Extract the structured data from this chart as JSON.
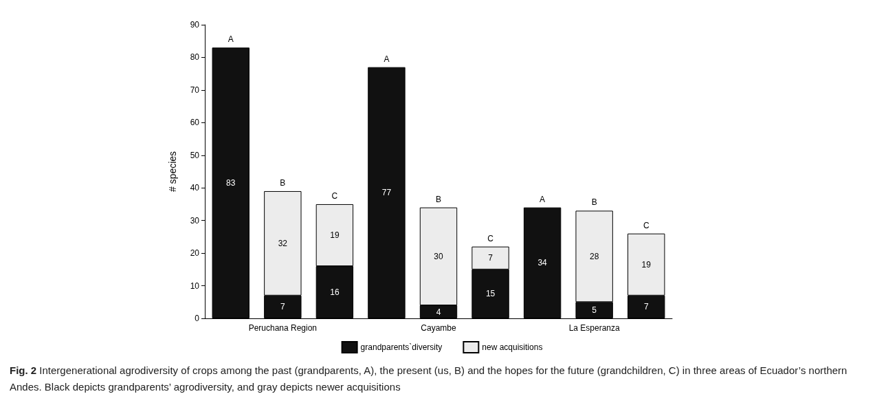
{
  "chart_data": {
    "type": "bar",
    "stacked": true,
    "ylabel": "# species",
    "categories": [
      null,
      "Peruchana Region",
      null,
      null,
      "Cayambe",
      null,
      null,
      "La Esperanza",
      null
    ],
    "series": [
      {
        "name": "grandparents`diversity",
        "color": "#111111",
        "values": [
          83,
          7,
          16,
          77,
          4,
          15,
          34,
          5,
          7
        ]
      },
      {
        "name": "new acquisitions",
        "color": "#ececec",
        "values": [
          null,
          32,
          19,
          null,
          30,
          7,
          null,
          28,
          19
        ]
      }
    ],
    "ylim": [
      0,
      90
    ],
    "yticks": [
      0,
      10,
      20,
      30,
      40,
      50,
      60,
      70,
      80,
      90
    ],
    "data_labels": true,
    "grid": false,
    "legend": "bottom",
    "annotations": [
      "A",
      "B",
      "C",
      "A",
      "B",
      "C",
      "A",
      "B",
      "C",
      "**Fig. 2** Intergenerational agrodiversity of crops among the past (grandparents, A), the present (us, B) and the hopes for the future (grandchildren, C) in three areas of Ecuador’s northern Andes. Black depicts grandparents’ agrodiversity, and gray depicts newer acquisitions"
    ]
  }
}
